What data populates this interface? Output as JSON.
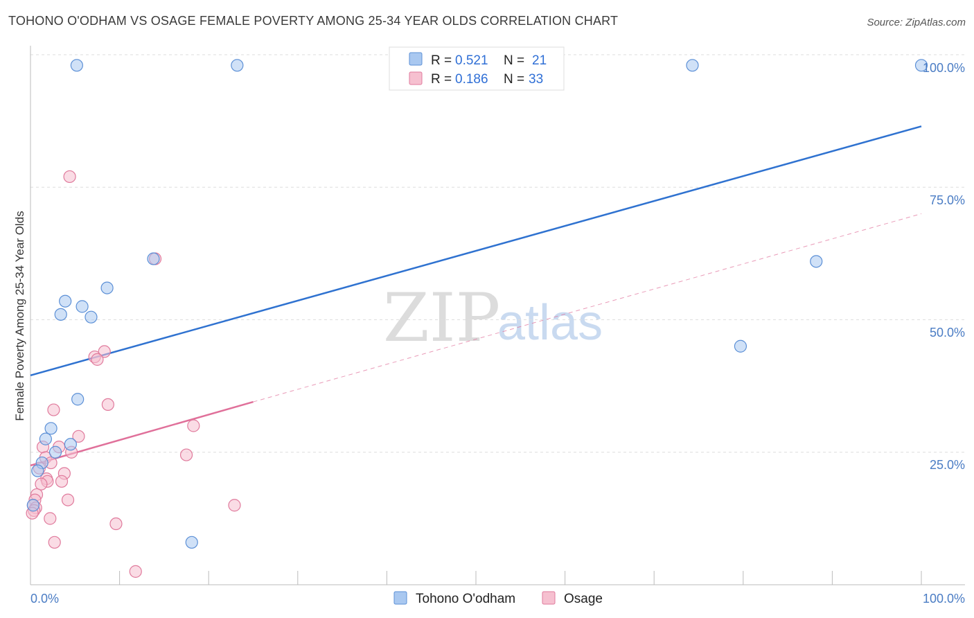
{
  "title": "TOHONO O'ODHAM VS OSAGE FEMALE POVERTY AMONG 25-34 YEAR OLDS CORRELATION CHART",
  "source": "Source: ZipAtlas.com",
  "watermark": {
    "part1": "ZIP",
    "part2": "atlas"
  },
  "legend": {
    "r_label": "R =",
    "n_label": "N =",
    "rows": [
      {
        "r": "0.521",
        "n": "21"
      },
      {
        "r": "0.186",
        "n": "33"
      }
    ]
  },
  "colors": {
    "tohono_fill": "#a9c8f0",
    "tohono_stroke": "#5b8fd6",
    "tohono_line": "#2f72d0",
    "osage_fill": "#f6c0d0",
    "osage_stroke": "#e07a9c",
    "osage_line": "#e0709a"
  },
  "chart_data": {
    "type": "scatter",
    "title": "TOHONO O'ODHAM VS OSAGE FEMALE POVERTY AMONG 25-34 YEAR OLDS CORRELATION CHART",
    "xlabel": "",
    "ylabel": "Female Poverty Among 25-34 Year Olds",
    "xlim": [
      0,
      100
    ],
    "ylim": [
      0,
      100
    ],
    "x_tick_labels": [
      "0.0%",
      "100.0%"
    ],
    "y_tick_values": [
      25,
      50,
      75,
      100
    ],
    "y_tick_labels": [
      "25.0%",
      "50.0%",
      "75.0%",
      "100.0%"
    ],
    "grid": true,
    "legend_position": "top-center",
    "series": [
      {
        "name": "Tohono O'odham",
        "r": 0.521,
        "n": 21,
        "points": [
          [
            5.2,
            98
          ],
          [
            23.2,
            98
          ],
          [
            74.3,
            98
          ],
          [
            100,
            98
          ],
          [
            13.8,
            61.5
          ],
          [
            88.2,
            61
          ],
          [
            8.6,
            56
          ],
          [
            3.9,
            53.5
          ],
          [
            5.8,
            52.5
          ],
          [
            3.4,
            51
          ],
          [
            6.8,
            50.5
          ],
          [
            79.7,
            45
          ],
          [
            5.3,
            35
          ],
          [
            2.3,
            29.5
          ],
          [
            1.7,
            27.5
          ],
          [
            2.8,
            25
          ],
          [
            4.5,
            26.5
          ],
          [
            1.3,
            23
          ],
          [
            0.8,
            21.5
          ],
          [
            0.3,
            15
          ],
          [
            18.1,
            8
          ]
        ],
        "trend": {
          "x1": 0,
          "y1": 39.5,
          "x2": 100,
          "y2": 86.5
        }
      },
      {
        "name": "Osage",
        "r": 0.186,
        "n": 33,
        "points": [
          [
            4.4,
            77
          ],
          [
            14,
            61.5
          ],
          [
            8.3,
            44
          ],
          [
            7.2,
            43
          ],
          [
            7.5,
            42.5
          ],
          [
            8.7,
            34
          ],
          [
            2.6,
            33
          ],
          [
            18.3,
            30
          ],
          [
            5.4,
            28
          ],
          [
            1.4,
            26
          ],
          [
            3.2,
            26
          ],
          [
            4.6,
            25
          ],
          [
            17.5,
            24.5
          ],
          [
            1.7,
            24
          ],
          [
            2.3,
            23
          ],
          [
            1.0,
            22
          ],
          [
            3.8,
            21
          ],
          [
            1.8,
            20
          ],
          [
            1.9,
            19.5
          ],
          [
            3.5,
            19.5
          ],
          [
            1.2,
            19
          ],
          [
            0.7,
            17
          ],
          [
            0.5,
            16
          ],
          [
            4.2,
            16
          ],
          [
            0.3,
            15
          ],
          [
            0.6,
            14.5
          ],
          [
            22.9,
            15
          ],
          [
            0.4,
            14
          ],
          [
            2.2,
            12.5
          ],
          [
            9.6,
            11.5
          ],
          [
            2.7,
            8
          ],
          [
            11.8,
            2.5
          ],
          [
            0.2,
            13.5
          ]
        ],
        "trend_solid": {
          "x1": 0,
          "y1": 22.5,
          "x2": 25,
          "y2": 34.5
        },
        "trend_dashed": {
          "x1": 25,
          "y1": 34.5,
          "x2": 100,
          "y2": 70
        }
      }
    ]
  },
  "bottom_legend": {
    "items": [
      {
        "label": "Tohono O'odham"
      },
      {
        "label": "Osage"
      }
    ]
  }
}
